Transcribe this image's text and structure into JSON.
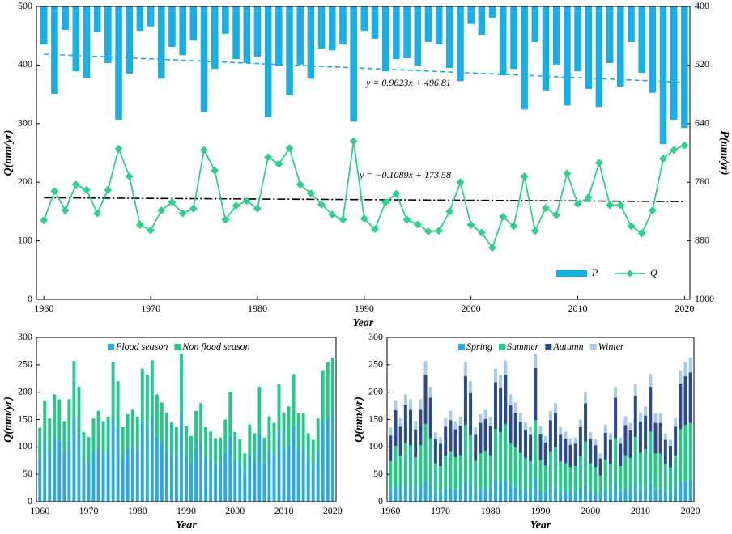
{
  "chart_data": [
    {
      "type": "combo",
      "x": [
        1960,
        1961,
        1962,
        1963,
        1964,
        1965,
        1966,
        1967,
        1968,
        1969,
        1970,
        1971,
        1972,
        1973,
        1974,
        1975,
        1976,
        1977,
        1978,
        1979,
        1980,
        1981,
        1982,
        1983,
        1984,
        1985,
        1986,
        1987,
        1988,
        1989,
        1990,
        1991,
        1992,
        1993,
        1994,
        1995,
        1996,
        1997,
        1998,
        1999,
        2000,
        2001,
        2002,
        2003,
        2004,
        2005,
        2006,
        2007,
        2008,
        2009,
        2010,
        2011,
        2012,
        2013,
        2014,
        2015,
        2016,
        2017,
        2018,
        2019,
        2020
      ],
      "xlim": [
        1959.3,
        2020.5
      ],
      "xticks": [
        1960,
        1970,
        1980,
        1990,
        2000,
        2010,
        2020
      ],
      "ylim": [
        0,
        500
      ],
      "yticks": [
        0,
        100,
        200,
        300,
        400,
        500
      ],
      "y2lim": [
        400,
        1000
      ],
      "y2_inverted": true,
      "y2ticks": [
        400,
        520,
        640,
        760,
        880,
        1000
      ],
      "x_label": "Year",
      "y_label": "Q(mm/yr)",
      "y2_label": "P(mm/yr)",
      "legend": "lower right",
      "series": [
        {
          "name": "P",
          "kind": "bar",
          "axis": "y2",
          "color": "#1aaee5",
          "values": [
            478,
            579,
            448,
            533,
            546,
            453,
            516,
            632,
            538,
            450,
            441,
            548,
            483,
            500,
            470,
            616,
            528,
            456,
            508,
            516,
            503,
            627,
            521,
            582,
            519,
            548,
            486,
            490,
            478,
            636,
            450,
            466,
            533,
            508,
            506,
            521,
            473,
            478,
            526,
            553,
            436,
            458,
            423,
            541,
            528,
            611,
            473,
            572,
            519,
            603,
            533,
            569,
            606,
            516,
            564,
            473,
            536,
            577,
            682,
            632,
            649
          ]
        },
        {
          "name": "Q",
          "kind": "line",
          "color": "#2fcf8c",
          "values": [
            135,
            185,
            152,
            196,
            187,
            147,
            187,
            257,
            210,
            127,
            118,
            152,
            166,
            147,
            155,
            255,
            220,
            136,
            160,
            168,
            155,
            243,
            231,
            258,
            196,
            181,
            162,
            145,
            136,
            270,
            138,
            120,
            166,
            180,
            136,
            128,
            116,
            117,
            150,
            200,
            127,
            114,
            88,
            141,
            125,
            210,
            117,
            156,
            144,
            215,
            163,
            174,
            233,
            161,
            161,
            125,
            113,
            152,
            240,
            255,
            263
          ]
        }
      ],
      "trendlines": [
        {
          "axis": "y2",
          "slope": 0.9623,
          "intercept": 496.81,
          "label": "y = 0.9623x + 496.81",
          "color": "#1aaee5",
          "style": "dashed"
        },
        {
          "axis": "y",
          "slope": -0.1089,
          "intercept": 173.58,
          "label": "y = −0.1089x + 173.58",
          "color": "#000000",
          "style": "dashdot"
        }
      ]
    },
    {
      "type": "stacked-bar",
      "x": [
        1960,
        1961,
        1962,
        1963,
        1964,
        1965,
        1966,
        1967,
        1968,
        1969,
        1970,
        1971,
        1972,
        1973,
        1974,
        1975,
        1976,
        1977,
        1978,
        1979,
        1980,
        1981,
        1982,
        1983,
        1984,
        1985,
        1986,
        1987,
        1988,
        1989,
        1990,
        1991,
        1992,
        1993,
        1994,
        1995,
        1996,
        1997,
        1998,
        1999,
        2000,
        2001,
        2002,
        2003,
        2004,
        2005,
        2006,
        2007,
        2008,
        2009,
        2010,
        2011,
        2012,
        2013,
        2014,
        2015,
        2016,
        2017,
        2018,
        2019,
        2020
      ],
      "xlim": [
        1959.3,
        2020.7
      ],
      "xticks": [
        1960,
        1970,
        1980,
        1990,
        2000,
        2010,
        2020
      ],
      "ylim": [
        0,
        300
      ],
      "yticks": [
        0,
        50,
        100,
        150,
        200,
        250,
        300
      ],
      "x_label": "Year",
      "y_label": "Q(mm/yr)",
      "legend": "upper left",
      "series": [
        {
          "name": "Flood season",
          "color": "#29abe2",
          "values": [
            81,
            111,
            91,
            118,
            112,
            88,
            112,
            154,
            126,
            76,
            71,
            91,
            100,
            88,
            93,
            153,
            132,
            82,
            96,
            101,
            93,
            146,
            139,
            155,
            118,
            109,
            97,
            87,
            82,
            162,
            83,
            72,
            100,
            108,
            82,
            77,
            70,
            70,
            90,
            120,
            76,
            68,
            53,
            85,
            75,
            126,
            70,
            94,
            86,
            129,
            98,
            104,
            140,
            97,
            97,
            75,
            68,
            91,
            144,
            153,
            158
          ]
        },
        {
          "name": "Non flood season",
          "color": "#22c98a",
          "values": [
            54,
            74,
            61,
            78,
            75,
            59,
            75,
            103,
            84,
            51,
            47,
            61,
            66,
            59,
            62,
            102,
            88,
            54,
            64,
            67,
            62,
            97,
            92,
            103,
            78,
            72,
            65,
            58,
            54,
            108,
            55,
            48,
            66,
            72,
            54,
            51,
            46,
            47,
            60,
            80,
            51,
            46,
            35,
            56,
            50,
            84,
            47,
            62,
            58,
            86,
            65,
            70,
            93,
            64,
            64,
            50,
            45,
            61,
            96,
            102,
            105
          ]
        }
      ]
    },
    {
      "type": "stacked-bar",
      "x": [
        1960,
        1961,
        1962,
        1963,
        1964,
        1965,
        1966,
        1967,
        1968,
        1969,
        1970,
        1971,
        1972,
        1973,
        1974,
        1975,
        1976,
        1977,
        1978,
        1979,
        1980,
        1981,
        1982,
        1983,
        1984,
        1985,
        1986,
        1987,
        1988,
        1989,
        1990,
        1991,
        1992,
        1993,
        1994,
        1995,
        1996,
        1997,
        1998,
        1999,
        2000,
        2001,
        2002,
        2003,
        2004,
        2005,
        2006,
        2007,
        2008,
        2009,
        2010,
        2011,
        2012,
        2013,
        2014,
        2015,
        2016,
        2017,
        2018,
        2019,
        2020
      ],
      "xlim": [
        1959.3,
        2020.7
      ],
      "xticks": [
        1960,
        1970,
        1980,
        1990,
        2000,
        2010,
        2020
      ],
      "ylim": [
        0,
        300
      ],
      "yticks": [
        0,
        50,
        100,
        150,
        200,
        250,
        300
      ],
      "x_label": "Year",
      "y_label": "Q(mm/yr)",
      "legend": "upper left",
      "series": [
        {
          "name": "Spring",
          "color": "#29abe2",
          "values": [
            20,
            28,
            23,
            29,
            28,
            22,
            28,
            39,
            32,
            19,
            18,
            23,
            25,
            22,
            23,
            38,
            33,
            20,
            24,
            25,
            23,
            36,
            35,
            39,
            29,
            27,
            24,
            22,
            20,
            41,
            21,
            18,
            25,
            27,
            20,
            19,
            17,
            18,
            23,
            30,
            19,
            17,
            13,
            21,
            19,
            32,
            18,
            23,
            22,
            32,
            24,
            26,
            35,
            24,
            24,
            19,
            17,
            23,
            36,
            38,
            39
          ]
        },
        {
          "name": "Summer",
          "color": "#22c98a",
          "values": [
            54,
            74,
            61,
            78,
            75,
            59,
            75,
            103,
            84,
            51,
            47,
            61,
            66,
            59,
            62,
            102,
            88,
            54,
            64,
            67,
            62,
            97,
            92,
            103,
            78,
            72,
            65,
            58,
            54,
            108,
            55,
            48,
            66,
            72,
            54,
            51,
            46,
            47,
            60,
            80,
            51,
            46,
            35,
            56,
            50,
            84,
            47,
            62,
            58,
            86,
            65,
            70,
            93,
            64,
            64,
            50,
            45,
            61,
            96,
            102,
            105
          ]
        },
        {
          "name": "Autumn",
          "color": "#2b4a8c",
          "values": [
            47,
            65,
            53,
            69,
            65,
            51,
            65,
            90,
            74,
            44,
            41,
            53,
            58,
            51,
            54,
            89,
            77,
            48,
            56,
            59,
            54,
            85,
            81,
            90,
            69,
            63,
            57,
            51,
            48,
            95,
            48,
            42,
            58,
            63,
            48,
            45,
            41,
            41,
            53,
            70,
            44,
            40,
            31,
            49,
            44,
            74,
            41,
            55,
            50,
            75,
            57,
            61,
            82,
            56,
            56,
            44,
            40,
            53,
            84,
            89,
            92
          ]
        },
        {
          "name": "Winter",
          "color": "#a9cbe8",
          "values": [
            14,
            18,
            15,
            20,
            19,
            15,
            19,
            25,
            20,
            13,
            12,
            15,
            17,
            15,
            16,
            26,
            22,
            14,
            16,
            17,
            16,
            25,
            23,
            26,
            20,
            19,
            16,
            14,
            14,
            26,
            14,
            12,
            17,
            18,
            14,
            13,
            12,
            11,
            14,
            20,
            13,
            11,
            9,
            15,
            12,
            20,
            11,
            16,
            14,
            22,
            17,
            17,
            23,
            17,
            17,
            12,
            11,
            15,
            24,
            26,
            27
          ]
        }
      ]
    }
  ]
}
